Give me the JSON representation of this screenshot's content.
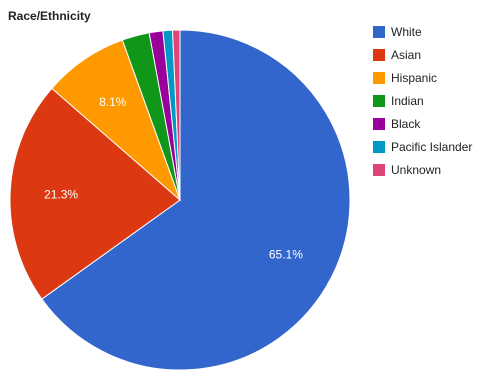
{
  "chart_data": {
    "type": "pie",
    "title": "Race/Ethnicity",
    "legend_position": "right",
    "start_angle_deg": 0,
    "direction": "clockwise",
    "slices": [
      {
        "name": "White",
        "value": 65.1,
        "color": "#3366cc",
        "label": "65.1%"
      },
      {
        "name": "Asian",
        "value": 21.3,
        "color": "#dc3912",
        "label": "21.3%"
      },
      {
        "name": "Hispanic",
        "value": 8.1,
        "color": "#ff9900",
        "label": "8.1%"
      },
      {
        "name": "Indian",
        "value": 2.6,
        "color": "#109618",
        "label": ""
      },
      {
        "name": "Black",
        "value": 1.3,
        "color": "#990099",
        "label": ""
      },
      {
        "name": "Pacific Islander",
        "value": 0.9,
        "color": "#0099c6",
        "label": ""
      },
      {
        "name": "Unknown",
        "value": 0.7,
        "color": "#dd4477",
        "label": ""
      }
    ]
  }
}
